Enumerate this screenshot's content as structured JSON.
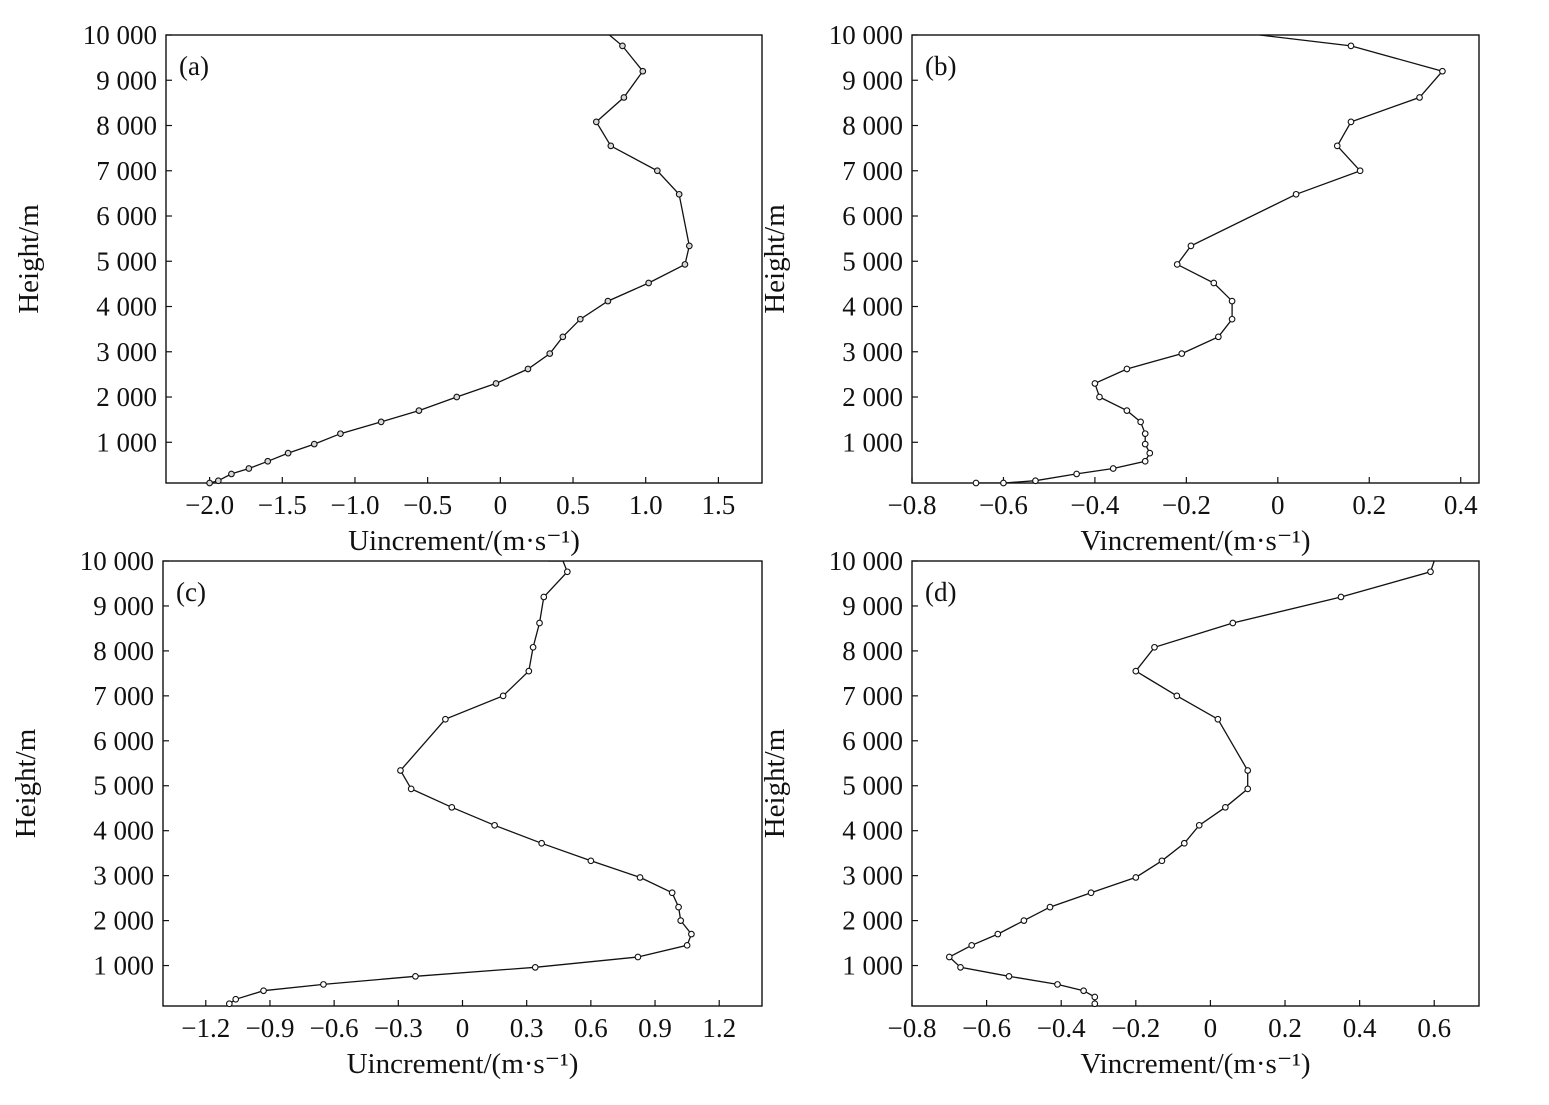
{
  "chart_data": [
    {
      "type": "line",
      "panel_label": "(a)",
      "xlabel": "Uincrement/(m·s⁻¹)",
      "ylabel": "Height/m",
      "xlim": [
        -2.3,
        1.8
      ],
      "ylim": [
        100,
        10000
      ],
      "xticks": [
        -2.0,
        -1.5,
        -1.0,
        -0.5,
        0,
        0.5,
        1.0,
        1.5
      ],
      "xtick_labels": [
        "−2.0",
        "−1.5",
        "−1.0",
        "−0.5",
        "0",
        "0.5",
        "1.0",
        "1.5"
      ],
      "yticks": [
        1000,
        2000,
        3000,
        4000,
        5000,
        6000,
        7000,
        8000,
        9000,
        10000
      ],
      "ytick_labels": [
        "1 000",
        "2 000",
        "3 000",
        "4 000",
        "5 000",
        "6 000",
        "7 000",
        "8 000",
        "9 000",
        "10 000"
      ],
      "grid": false,
      "series": [
        {
          "x": [
            -2.0,
            -1.94,
            -1.85,
            -1.73,
            -1.6,
            -1.46,
            -1.28,
            -1.1,
            -0.82,
            -0.56,
            -0.3,
            -0.03,
            0.19,
            0.34,
            0.43,
            0.55,
            0.74,
            1.02,
            1.27,
            1.3,
            1.23,
            1.08,
            0.76,
            0.66,
            0.85,
            0.98,
            0.84,
            0.75
          ],
          "y": [
            100,
            150,
            300,
            420,
            580,
            760,
            960,
            1190,
            1450,
            1700,
            2000,
            2300,
            2620,
            2960,
            3330,
            3720,
            4120,
            4520,
            4930,
            5340,
            6480,
            7000,
            7550,
            8080,
            8620,
            9200,
            9760,
            10000
          ]
        }
      ]
    },
    {
      "type": "line",
      "panel_label": "(b)",
      "xlabel": "Vincrement/(m·s⁻¹)",
      "ylabel": "Height/m",
      "xlim": [
        -0.8,
        0.44
      ],
      "ylim": [
        100,
        10000
      ],
      "xticks": [
        -0.8,
        -0.6,
        -0.4,
        -0.2,
        0,
        0.2,
        0.4
      ],
      "xtick_labels": [
        "−0.8",
        "−0.6",
        "−0.4",
        "−0.2",
        "0",
        "0.2",
        "0.4"
      ],
      "yticks": [
        1000,
        2000,
        3000,
        4000,
        5000,
        6000,
        7000,
        8000,
        9000,
        10000
      ],
      "ytick_labels": [
        "1 000",
        "2 000",
        "3 000",
        "4 000",
        "5 000",
        "6 000",
        "7 000",
        "8 000",
        "9 000",
        "10 000"
      ],
      "grid": false,
      "series": [
        {
          "x": [
            -0.66,
            -0.6,
            -0.53,
            -0.44,
            -0.36,
            -0.29,
            -0.28,
            -0.29,
            -0.29,
            -0.3,
            -0.33,
            -0.39,
            -0.4,
            -0.33,
            -0.21,
            -0.13,
            -0.1,
            -0.1,
            -0.14,
            -0.22,
            -0.19,
            0.04,
            0.18,
            0.13,
            0.16,
            0.31,
            0.36,
            0.16,
            -0.04
          ],
          "y": [
            100,
            100,
            150,
            300,
            420,
            580,
            760,
            960,
            1190,
            1450,
            1700,
            2000,
            2300,
            2620,
            2960,
            3330,
            3720,
            4120,
            4520,
            4930,
            5340,
            6480,
            7000,
            7550,
            8080,
            8620,
            9200,
            9760,
            10000
          ]
        }
      ]
    },
    {
      "type": "line",
      "panel_label": "(c)",
      "xlabel": "Uincrement/(m·s⁻¹)",
      "ylabel": "Height/m",
      "xlim": [
        -1.4,
        1.4
      ],
      "ylim": [
        100,
        10000
      ],
      "xticks": [
        -1.2,
        -0.9,
        -0.6,
        -0.3,
        0,
        0.3,
        0.6,
        0.9,
        1.2
      ],
      "xtick_labels": [
        "−1.2",
        "−0.9",
        "−0.6",
        "−0.3",
        "0",
        "0.3",
        "0.6",
        "0.9",
        "1.2"
      ],
      "yticks": [
        1000,
        2000,
        3000,
        4000,
        5000,
        6000,
        7000,
        8000,
        9000,
        10000
      ],
      "ytick_labels": [
        "1 000",
        "2 000",
        "3 000",
        "4 000",
        "5 000",
        "6 000",
        "7 000",
        "8 000",
        "9 000",
        "10 000"
      ],
      "grid": false,
      "series": [
        {
          "x": [
            -1.09,
            -1.06,
            -0.93,
            -0.65,
            -0.22,
            0.34,
            0.82,
            1.05,
            1.07,
            1.02,
            1.01,
            0.98,
            0.83,
            0.6,
            0.37,
            0.15,
            -0.05,
            -0.24,
            -0.29,
            -0.08,
            0.19,
            0.31,
            0.33,
            0.36,
            0.38,
            0.49,
            0.47,
            0.4
          ],
          "y": [
            150,
            250,
            440,
            580,
            760,
            960,
            1190,
            1450,
            1700,
            2000,
            2300,
            2620,
            2960,
            3330,
            3720,
            4120,
            4520,
            4930,
            5340,
            6480,
            7000,
            7550,
            8080,
            8620,
            9200,
            9760,
            10000,
            10000
          ]
        }
      ]
    },
    {
      "type": "line",
      "panel_label": "(d)",
      "xlabel": "Vincrement/(m·s⁻¹)",
      "ylabel": "Height/m",
      "xlim": [
        -0.8,
        0.72
      ],
      "ylim": [
        100,
        10000
      ],
      "xticks": [
        -0.8,
        -0.6,
        -0.4,
        -0.2,
        0,
        0.2,
        0.4,
        0.6
      ],
      "xtick_labels": [
        "−0.8",
        "−0.6",
        "−0.4",
        "−0.2",
        "0",
        "0.2",
        "0.4",
        "0.6"
      ],
      "yticks": [
        1000,
        2000,
        3000,
        4000,
        5000,
        6000,
        7000,
        8000,
        9000,
        10000
      ],
      "ytick_labels": [
        "1 000",
        "2 000",
        "3 000",
        "4 000",
        "5 000",
        "6 000",
        "7 000",
        "8 000",
        "9 000",
        "10 000"
      ],
      "grid": false,
      "series": [
        {
          "x": [
            -0.31,
            -0.31,
            -0.34,
            -0.41,
            -0.54,
            -0.67,
            -0.7,
            -0.64,
            -0.57,
            -0.5,
            -0.43,
            -0.32,
            -0.2,
            -0.13,
            -0.07,
            -0.03,
            0.04,
            0.1,
            0.1,
            0.02,
            -0.09,
            -0.2,
            -0.15,
            0.06,
            0.35,
            0.59,
            0.6
          ],
          "y": [
            150,
            300,
            440,
            580,
            760,
            960,
            1190,
            1450,
            1700,
            2000,
            2300,
            2620,
            2960,
            3330,
            3720,
            4120,
            4520,
            4930,
            5340,
            6480,
            7000,
            7550,
            8080,
            8620,
            9200,
            9760,
            10000
          ]
        }
      ]
    }
  ]
}
